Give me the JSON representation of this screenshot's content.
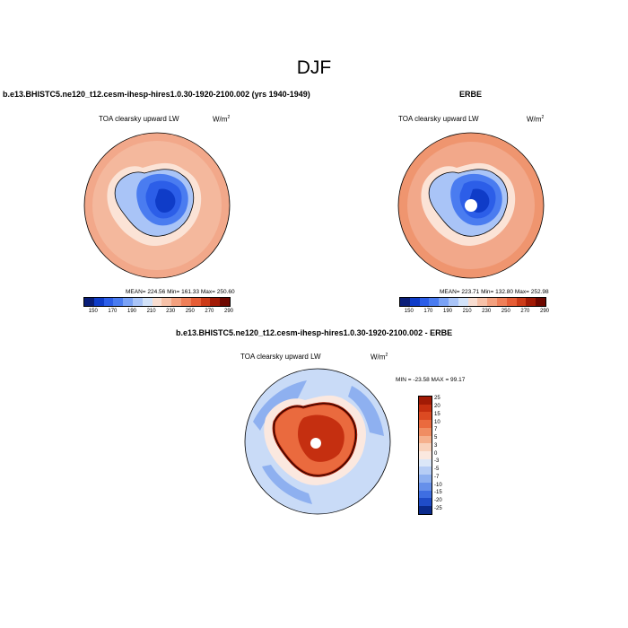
{
  "figure": {
    "season": "DJF"
  },
  "panels": {
    "model": {
      "title": "b.e13.BHISTC5.ne120_t12.cesm-ihesp-hires1.0.30-1920-2100.002 (yrs 1940-1949)",
      "variable": "TOA clearsky upward LW",
      "units": "W/m",
      "units_exp": "2",
      "stats": "MEAN= 224.56  Min= 161.33  Max= 250.60",
      "colorbar_ticks": [
        "150",
        "170",
        "190",
        "210",
        "230",
        "250",
        "270",
        "290"
      ]
    },
    "obs": {
      "title": "ERBE",
      "variable": "TOA clearsky upward LW",
      "units": "W/m",
      "units_exp": "2",
      "stats": "MEAN= 223.71  Min= 132.80  Max= 252.98",
      "colorbar_ticks": [
        "150",
        "170",
        "190",
        "210",
        "230",
        "250",
        "270",
        "290"
      ]
    },
    "diff": {
      "title": "b.e13.BHISTC5.ne120_t12.cesm-ihesp-hires1.0.30-1920-2100.002 - ERBE",
      "variable": "TOA clearsky upward LW",
      "units": "W/m",
      "units_exp": "2",
      "stats": "MIN = -23.58 MAX =  99.17",
      "colorbar_ticks": [
        "25",
        "20",
        "15",
        "10",
        "7",
        "5",
        "3",
        "0",
        "-3",
        "-5",
        "-7",
        "-10",
        "-15",
        "-20",
        "-25"
      ]
    }
  },
  "colors": {
    "seq_scale": [
      "#0a1e78",
      "#0f3cc8",
      "#2c5ee8",
      "#4a7cf0",
      "#7aa2f5",
      "#a9c4f7",
      "#d2e2f8",
      "#f8ddd0",
      "#f6c1a8",
      "#f3a07e",
      "#ef7f58",
      "#e65d36",
      "#cc3b18",
      "#a11a05",
      "#6e0800"
    ],
    "div_scale": [
      "#a11a05",
      "#c52f10",
      "#dc4a22",
      "#ea6a3e",
      "#f08d62",
      "#f5b08c",
      "#f9d2bb",
      "#fbe8df",
      "#dbe7f8",
      "#b6cdf5",
      "#8eb0f0",
      "#6690ea",
      "#3e6ee2",
      "#1f4cc8",
      "#0a2a8c"
    ],
    "map_border": "#000000"
  },
  "map_layers": {
    "model": {
      "ocean": "#f4b89d",
      "ocean_far": "#f2a88a",
      "shelf": "#fbe3d6",
      "ice_edge": "#a9c4f7",
      "plateau_outer": "#4a7cf0",
      "plateau_inner": "#2c5ee8",
      "plateau_core": "#0f3cc8"
    },
    "obs": {
      "ocean": "#f2a88a",
      "ocean_far": "#ef956f",
      "shelf": "#fbe3d6",
      "ice_edge": "#a9c4f7",
      "plateau_outer": "#4a7cf0",
      "plateau_inner": "#2c5ee8",
      "plateau_core": "#0f3cc8",
      "pole_hole": "#ffffff"
    },
    "diff": {
      "ocean": "#c9dbf7",
      "ocean_patch": "#8eb0f0",
      "coast_neutral": "#fbe8df",
      "land": "#ea6a3e",
      "land_hot": "#c52f10",
      "land_edge": "#a11a05",
      "pole_hole": "#ffffff"
    }
  }
}
